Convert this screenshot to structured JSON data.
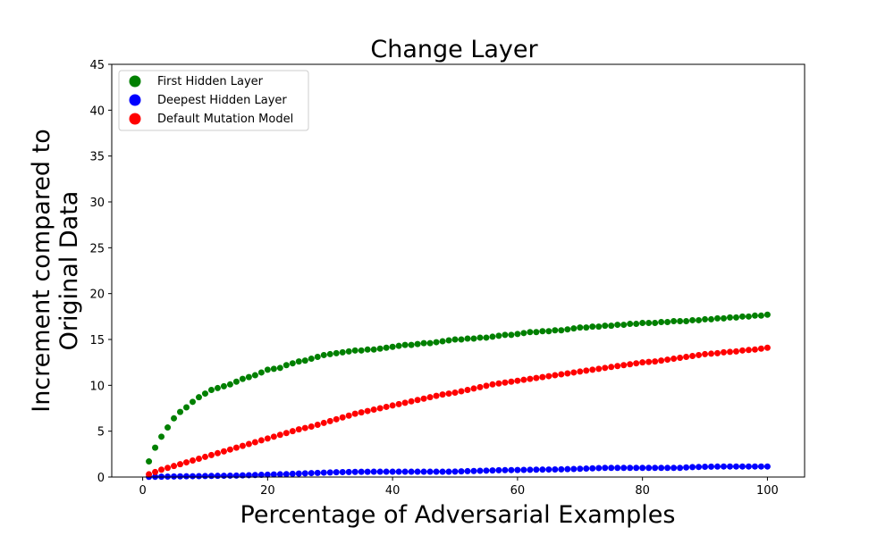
{
  "chart_data": {
    "type": "scatter",
    "title": "Change Layer",
    "xlabel": "Percentage of Adversarial Examples",
    "ylabel": [
      "Increment compared to",
      "Original Data"
    ],
    "xlim": [
      -4.95,
      105.95
    ],
    "ylim": [
      0,
      45
    ],
    "xticks": [
      0,
      20,
      40,
      60,
      80,
      100
    ],
    "yticks": [
      0,
      5,
      10,
      15,
      20,
      25,
      30,
      35,
      40,
      45
    ],
    "grid": false,
    "legend_position": "top-left",
    "x": [
      1,
      2,
      3,
      4,
      5,
      6,
      7,
      8,
      9,
      10,
      11,
      12,
      13,
      14,
      15,
      16,
      17,
      18,
      19,
      20,
      21,
      22,
      23,
      24,
      25,
      26,
      27,
      28,
      29,
      30,
      31,
      32,
      33,
      34,
      35,
      36,
      37,
      38,
      39,
      40,
      41,
      42,
      43,
      44,
      45,
      46,
      47,
      48,
      49,
      50,
      51,
      52,
      53,
      54,
      55,
      56,
      57,
      58,
      59,
      60,
      61,
      62,
      63,
      64,
      65,
      66,
      67,
      68,
      69,
      70,
      71,
      72,
      73,
      74,
      75,
      76,
      77,
      78,
      79,
      80,
      81,
      82,
      83,
      84,
      85,
      86,
      87,
      88,
      89,
      90,
      91,
      92,
      93,
      94,
      95,
      96,
      97,
      98,
      99,
      100
    ],
    "series": [
      {
        "name": "First Hidden Layer",
        "color": "#008000",
        "values": [
          1.7,
          3.2,
          4.4,
          5.4,
          6.4,
          7.1,
          7.6,
          8.2,
          8.7,
          9.1,
          9.5,
          9.7,
          9.9,
          10.1,
          10.4,
          10.7,
          10.9,
          11.1,
          11.4,
          11.7,
          11.8,
          11.9,
          12.2,
          12.4,
          12.6,
          12.7,
          12.9,
          13.1,
          13.3,
          13.4,
          13.5,
          13.6,
          13.7,
          13.8,
          13.8,
          13.9,
          13.9,
          14.0,
          14.1,
          14.2,
          14.3,
          14.4,
          14.4,
          14.5,
          14.6,
          14.6,
          14.7,
          14.8,
          14.9,
          15.0,
          15.0,
          15.1,
          15.1,
          15.2,
          15.2,
          15.3,
          15.4,
          15.5,
          15.5,
          15.6,
          15.7,
          15.8,
          15.8,
          15.9,
          15.9,
          16.0,
          16.0,
          16.1,
          16.2,
          16.3,
          16.3,
          16.4,
          16.4,
          16.5,
          16.5,
          16.6,
          16.6,
          16.7,
          16.7,
          16.8,
          16.8,
          16.8,
          16.9,
          16.9,
          17.0,
          17.0,
          17.0,
          17.1,
          17.1,
          17.2,
          17.2,
          17.3,
          17.3,
          17.4,
          17.4,
          17.5,
          17.5,
          17.6,
          17.6,
          17.7
        ]
      },
      {
        "name": "Deepest Hidden Layer",
        "color": "#0000ff",
        "values": [
          0.02,
          0.03,
          0.04,
          0.05,
          0.06,
          0.07,
          0.08,
          0.09,
          0.1,
          0.11,
          0.12,
          0.13,
          0.14,
          0.15,
          0.16,
          0.18,
          0.2,
          0.22,
          0.24,
          0.26,
          0.28,
          0.3,
          0.32,
          0.35,
          0.38,
          0.4,
          0.43,
          0.45,
          0.48,
          0.5,
          0.52,
          0.54,
          0.55,
          0.56,
          0.57,
          0.57,
          0.58,
          0.58,
          0.58,
          0.58,
          0.58,
          0.58,
          0.58,
          0.58,
          0.58,
          0.58,
          0.58,
          0.58,
          0.58,
          0.6,
          0.62,
          0.64,
          0.66,
          0.68,
          0.7,
          0.72,
          0.74,
          0.75,
          0.76,
          0.77,
          0.78,
          0.79,
          0.8,
          0.81,
          0.82,
          0.83,
          0.84,
          0.86,
          0.88,
          0.9,
          0.92,
          0.95,
          0.98,
          1.0,
          1.0,
          1.0,
          1.0,
          1.0,
          1.0,
          1.0,
          1.0,
          1.0,
          1.0,
          1.0,
          1.0,
          1.0,
          1.05,
          1.08,
          1.1,
          1.12,
          1.13,
          1.14,
          1.15,
          1.15,
          1.15,
          1.15,
          1.15,
          1.15,
          1.15,
          1.15
        ]
      },
      {
        "name": "Default Mutation Model",
        "color": "#ff0000",
        "values": [
          0.3,
          0.55,
          0.8,
          1.0,
          1.2,
          1.4,
          1.6,
          1.8,
          2.0,
          2.2,
          2.4,
          2.6,
          2.8,
          3.0,
          3.2,
          3.4,
          3.6,
          3.8,
          4.0,
          4.2,
          4.4,
          4.6,
          4.8,
          5.0,
          5.2,
          5.35,
          5.5,
          5.7,
          5.9,
          6.1,
          6.3,
          6.5,
          6.7,
          6.9,
          7.05,
          7.2,
          7.35,
          7.5,
          7.65,
          7.8,
          7.95,
          8.1,
          8.25,
          8.4,
          8.55,
          8.7,
          8.85,
          9.0,
          9.1,
          9.2,
          9.35,
          9.5,
          9.65,
          9.8,
          9.95,
          10.1,
          10.2,
          10.3,
          10.4,
          10.5,
          10.6,
          10.7,
          10.8,
          10.9,
          11.0,
          11.1,
          11.2,
          11.3,
          11.4,
          11.5,
          11.6,
          11.7,
          11.8,
          11.9,
          12.0,
          12.1,
          12.2,
          12.3,
          12.4,
          12.5,
          12.55,
          12.6,
          12.7,
          12.8,
          12.9,
          13.0,
          13.1,
          13.2,
          13.3,
          13.4,
          13.45,
          13.5,
          13.6,
          13.65,
          13.7,
          13.8,
          13.85,
          13.9,
          14.0,
          14.1
        ]
      }
    ]
  }
}
